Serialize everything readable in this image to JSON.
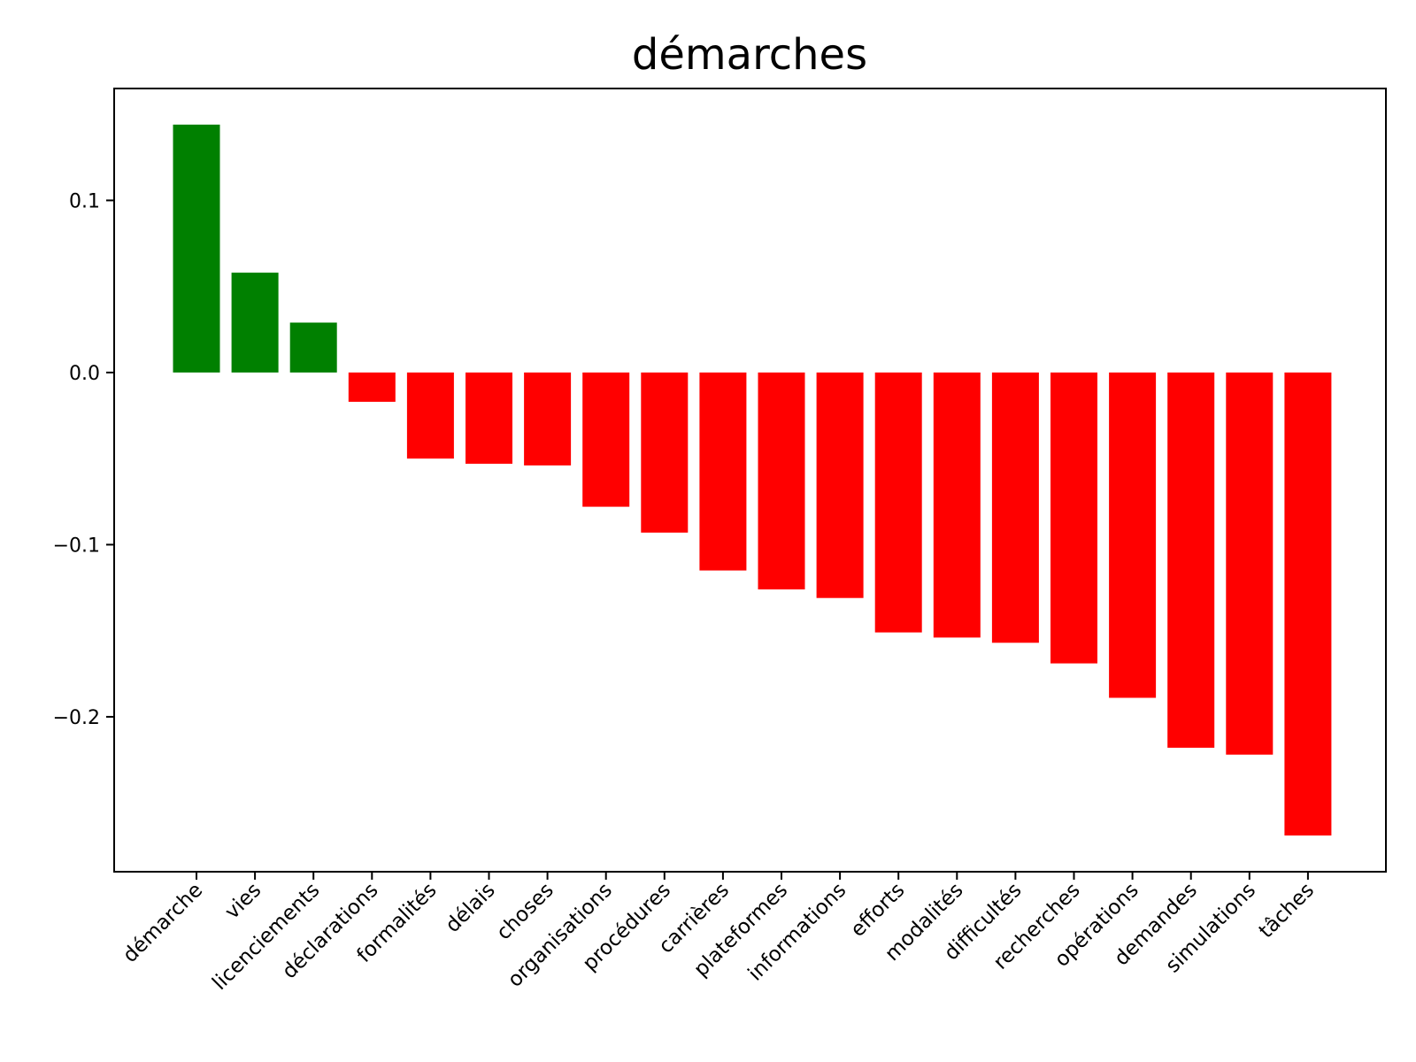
{
  "chart_data": {
    "type": "bar",
    "title": "démarches",
    "xlabel": "",
    "ylabel": "",
    "ylim": [
      -0.29,
      0.165
    ],
    "yticks": [
      0.1,
      0.0,
      -0.1,
      -0.2
    ],
    "ytick_labels": [
      "0.1",
      "0.0",
      "−0.1",
      "−0.2"
    ],
    "grid": false,
    "colors": {
      "positive": "#008000",
      "negative": "#ff0000"
    },
    "categories": [
      "démarche",
      "vies",
      "licenciements",
      "déclarations",
      "formalités",
      "délais",
      "choses",
      "organisations",
      "procédures",
      "carrières",
      "plateformes",
      "informations",
      "efforts",
      "modalités",
      "difficultés",
      "recherches",
      "opérations",
      "demandes",
      "simulations",
      "tâches"
    ],
    "values": [
      0.144,
      0.058,
      0.029,
      -0.017,
      -0.05,
      -0.053,
      -0.054,
      -0.078,
      -0.093,
      -0.115,
      -0.126,
      -0.131,
      -0.151,
      -0.154,
      -0.157,
      -0.169,
      -0.189,
      -0.218,
      -0.222,
      -0.269
    ]
  }
}
